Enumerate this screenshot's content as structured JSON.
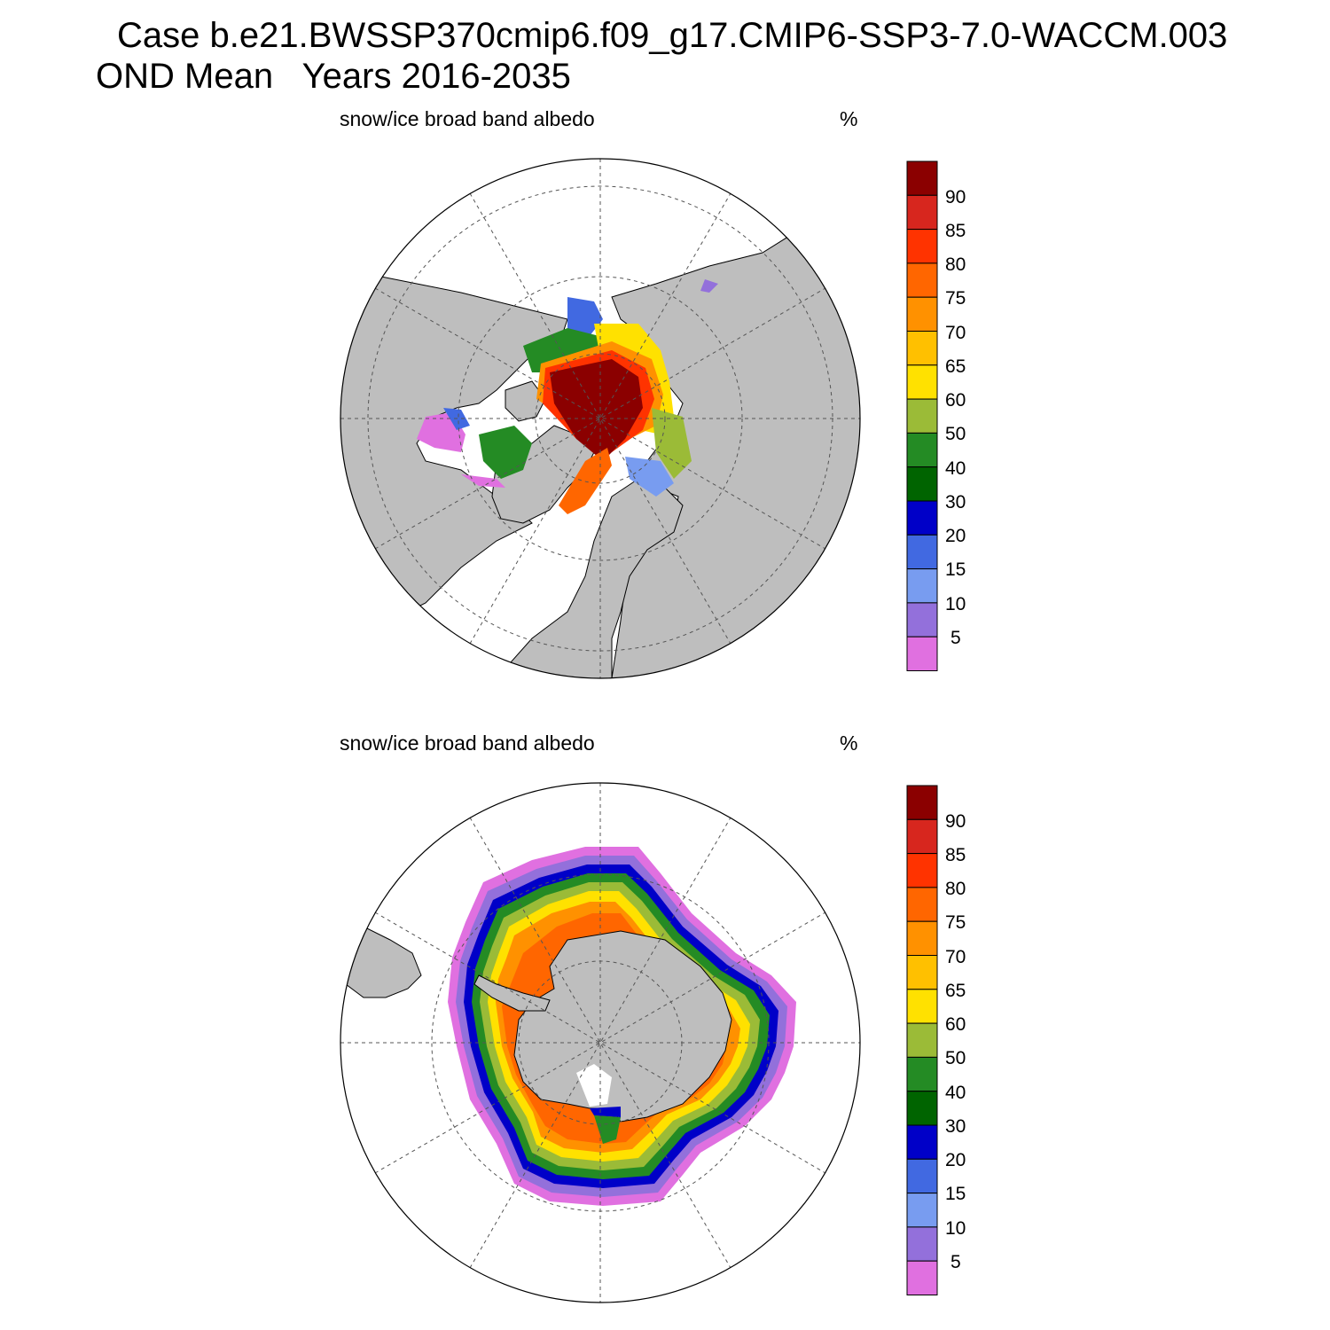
{
  "header": {
    "line1": "Case b.e21.BWSSP370cmip6.f09_g17.CMIP6-SSP3-7.0-WACCM.003",
    "line2": "OND Mean   Years 2016-2035"
  },
  "panels": [
    {
      "id": "north",
      "hemisphere": "Northern Hemisphere polar stereographic",
      "title": "snow/ice broad band albedo",
      "units": "%"
    },
    {
      "id": "south",
      "hemisphere": "Southern Hemisphere polar stereographic",
      "title": "snow/ice broad band albedo",
      "units": "%"
    }
  ],
  "colorbar": {
    "labels": [
      "90",
      "85",
      "80",
      "75",
      "70",
      "65",
      "60",
      "50",
      "40",
      "30",
      "20",
      "15",
      "10",
      "5"
    ],
    "colors_top_to_bottom": [
      "#8b0000",
      "#d7261e",
      "#ff3300",
      "#ff6600",
      "#ff9100",
      "#ffc000",
      "#ffe100",
      "#9bbb37",
      "#248b24",
      "#006400",
      "#0000c8",
      "#4169e1",
      "#789cf0",
      "#9370db",
      "#e070e0"
    ]
  },
  "colors": {
    "land": "#bebebe",
    "ocean": "#ffffff",
    "grid": "#555555"
  }
}
